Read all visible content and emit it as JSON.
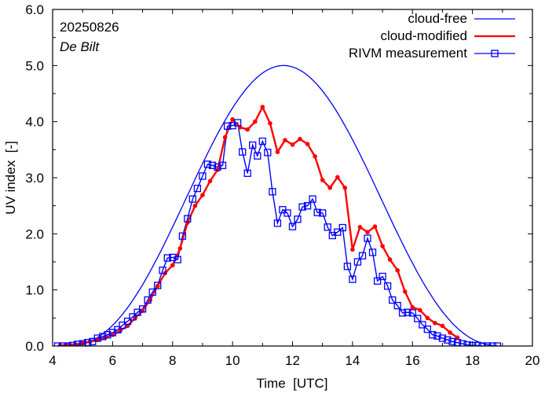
{
  "chart_data": {
    "type": "line",
    "title": "",
    "xlabel": "Time  [UTC]",
    "ylabel": "UV index  [-]",
    "xlim": [
      4,
      20
    ],
    "ylim": [
      0,
      6
    ],
    "x_ticks": [
      4,
      6,
      8,
      10,
      12,
      14,
      16,
      18,
      20
    ],
    "x_tick_labels": [
      "4",
      "6",
      "8",
      "10",
      "12",
      "14",
      "16",
      "18",
      "20"
    ],
    "y_ticks": [
      0,
      1,
      2,
      3,
      4,
      5,
      6
    ],
    "y_tick_labels": [
      "0.0",
      "1.0",
      "2.0",
      "3.0",
      "4.0",
      "5.0",
      "6.0"
    ],
    "grid": false,
    "legend_position": "top-right",
    "annotations": [
      {
        "text": "20250826",
        "position": "top-left",
        "style": "normal"
      },
      {
        "text": "De Bilt",
        "position": "top-left",
        "style": "italic"
      }
    ],
    "series": [
      {
        "name": "cloud-free",
        "color": "#0000ff",
        "marker": "none",
        "kind": "curve",
        "peak_time": 11.7,
        "peak_value": 5.0,
        "start_time": 4.2,
        "end_time": 19.0
      },
      {
        "name": "cloud-modified",
        "color": "#ff0000",
        "marker": "dot",
        "x": [
          4.25,
          4.5,
          4.75,
          5.0,
          5.25,
          5.5,
          5.75,
          6.0,
          6.25,
          6.5,
          6.75,
          7.0,
          7.25,
          7.5,
          7.75,
          8.0,
          8.25,
          8.5,
          8.75,
          9.0,
          9.25,
          9.5,
          9.75,
          10.0,
          10.25,
          10.5,
          10.75,
          11.0,
          11.25,
          11.5,
          11.75,
          12.0,
          12.25,
          12.5,
          12.75,
          13.0,
          13.25,
          13.5,
          13.75,
          14.0,
          14.25,
          14.5,
          14.75,
          15.0,
          15.25,
          15.5,
          15.75,
          16.0,
          16.25,
          16.5,
          16.75,
          17.0,
          17.25,
          17.5
        ],
        "values": [
          0.01,
          0.02,
          0.03,
          0.05,
          0.08,
          0.11,
          0.15,
          0.2,
          0.27,
          0.36,
          0.5,
          0.63,
          0.82,
          1.07,
          1.3,
          1.44,
          1.74,
          2.2,
          2.5,
          2.69,
          2.94,
          3.14,
          3.72,
          4.04,
          3.9,
          3.86,
          4.0,
          4.26,
          3.97,
          3.46,
          3.67,
          3.59,
          3.69,
          3.6,
          3.38,
          2.96,
          2.82,
          3.01,
          2.82,
          1.72,
          2.12,
          2.03,
          2.13,
          1.78,
          1.54,
          1.35,
          0.97,
          0.69,
          0.64,
          0.5,
          0.41,
          0.36,
          0.24,
          0.15
        ]
      },
      {
        "name": "RIVM measurement",
        "color": "#0000ff",
        "marker": "square",
        "x": [
          4.17,
          4.33,
          4.5,
          4.67,
          4.83,
          5.0,
          5.17,
          5.33,
          5.5,
          5.67,
          5.83,
          6.0,
          6.17,
          6.33,
          6.5,
          6.67,
          6.83,
          7.0,
          7.17,
          7.33,
          7.5,
          7.67,
          7.83,
          8.0,
          8.17,
          8.33,
          8.5,
          8.67,
          8.83,
          9.0,
          9.17,
          9.33,
          9.5,
          9.67,
          9.83,
          10.0,
          10.17,
          10.33,
          10.5,
          10.67,
          10.83,
          11.0,
          11.17,
          11.33,
          11.5,
          11.67,
          11.83,
          12.0,
          12.17,
          12.33,
          12.5,
          12.67,
          12.83,
          13.0,
          13.17,
          13.33,
          13.5,
          13.67,
          13.83,
          14.0,
          14.17,
          14.33,
          14.5,
          14.67,
          14.83,
          15.0,
          15.17,
          15.33,
          15.5,
          15.67,
          15.83,
          16.0,
          16.17,
          16.33,
          16.5,
          16.67,
          16.83,
          17.0,
          17.17,
          17.33,
          17.5,
          17.67,
          17.83,
          18.0,
          18.17,
          18.33,
          18.5,
          18.67,
          18.83
        ],
        "values": [
          0.0,
          0.0,
          0.0,
          0.01,
          0.03,
          0.04,
          0.06,
          0.08,
          0.14,
          0.17,
          0.2,
          0.24,
          0.29,
          0.37,
          0.44,
          0.52,
          0.6,
          0.66,
          0.82,
          0.96,
          1.08,
          1.35,
          1.57,
          1.58,
          1.54,
          1.96,
          2.27,
          2.62,
          2.81,
          3.03,
          3.24,
          3.22,
          3.19,
          3.22,
          3.92,
          3.93,
          3.98,
          3.46,
          3.08,
          3.58,
          3.39,
          3.65,
          3.45,
          2.75,
          2.19,
          2.43,
          2.37,
          2.13,
          2.26,
          2.48,
          2.5,
          2.62,
          2.38,
          2.37,
          2.12,
          1.97,
          2.03,
          2.11,
          1.42,
          1.19,
          1.5,
          1.61,
          1.92,
          1.67,
          1.16,
          1.24,
          1.07,
          0.82,
          0.72,
          0.59,
          0.6,
          0.59,
          0.49,
          0.38,
          0.3,
          0.2,
          0.18,
          0.14,
          0.11,
          0.08,
          0.06,
          0.04,
          0.02,
          0.01,
          0.01,
          0.0,
          0.0,
          0.0,
          0.0
        ]
      }
    ]
  }
}
